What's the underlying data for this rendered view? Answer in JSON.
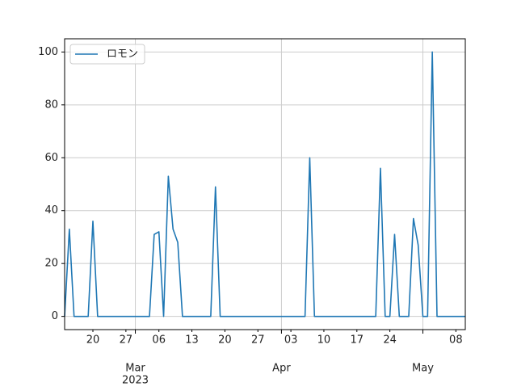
{
  "chart_data": {
    "type": "line",
    "x": [
      "2023-02-14",
      "2023-02-15",
      "2023-02-16",
      "2023-02-17",
      "2023-02-18",
      "2023-02-19",
      "2023-02-20",
      "2023-02-21",
      "2023-02-22",
      "2023-02-23",
      "2023-02-24",
      "2023-02-25",
      "2023-02-26",
      "2023-02-27",
      "2023-02-28",
      "2023-03-01",
      "2023-03-02",
      "2023-03-03",
      "2023-03-04",
      "2023-03-05",
      "2023-03-06",
      "2023-03-07",
      "2023-03-08",
      "2023-03-09",
      "2023-03-10",
      "2023-03-11",
      "2023-03-12",
      "2023-03-13",
      "2023-03-14",
      "2023-03-15",
      "2023-03-16",
      "2023-03-17",
      "2023-03-18",
      "2023-03-19",
      "2023-03-20",
      "2023-03-21",
      "2023-03-22",
      "2023-03-23",
      "2023-03-24",
      "2023-03-25",
      "2023-03-26",
      "2023-03-27",
      "2023-03-28",
      "2023-03-29",
      "2023-03-30",
      "2023-03-31",
      "2023-04-01",
      "2023-04-02",
      "2023-04-03",
      "2023-04-04",
      "2023-04-05",
      "2023-04-06",
      "2023-04-07",
      "2023-04-08",
      "2023-04-09",
      "2023-04-10",
      "2023-04-11",
      "2023-04-12",
      "2023-04-13",
      "2023-04-14",
      "2023-04-15",
      "2023-04-16",
      "2023-04-17",
      "2023-04-18",
      "2023-04-19",
      "2023-04-20",
      "2023-04-21",
      "2023-04-22",
      "2023-04-23",
      "2023-04-24",
      "2023-04-25",
      "2023-04-26",
      "2023-04-27",
      "2023-04-28",
      "2023-04-29",
      "2023-04-30",
      "2023-05-01",
      "2023-05-02",
      "2023-05-03",
      "2023-05-04",
      "2023-05-05",
      "2023-05-06",
      "2023-05-07",
      "2023-05-08",
      "2023-05-09",
      "2023-05-10"
    ],
    "series": [
      {
        "name": "ロモン",
        "color": "#1f77b4",
        "values": [
          0,
          33,
          0,
          0,
          0,
          0,
          36,
          0,
          0,
          0,
          0,
          0,
          0,
          0,
          0,
          0,
          0,
          0,
          0,
          31,
          32,
          0,
          53,
          33,
          28,
          0,
          0,
          0,
          0,
          0,
          0,
          0,
          49,
          0,
          0,
          0,
          0,
          0,
          0,
          0,
          0,
          0,
          0,
          0,
          0,
          0,
          0,
          0,
          0,
          0,
          0,
          0,
          60,
          0,
          0,
          0,
          0,
          0,
          0,
          0,
          0,
          0,
          0,
          0,
          0,
          0,
          0,
          56,
          0,
          0,
          31,
          0,
          0,
          0,
          37,
          27,
          0,
          0,
          100,
          0,
          0,
          0,
          0,
          0,
          0,
          0
        ]
      }
    ],
    "xlim": [
      "2023-02-14",
      "2023-05-10"
    ],
    "xticks_minor": [
      {
        "value": "2023-02-20",
        "label": "20"
      },
      {
        "value": "2023-02-27",
        "label": "27"
      },
      {
        "value": "2023-03-06",
        "label": "06"
      },
      {
        "value": "2023-03-13",
        "label": "13"
      },
      {
        "value": "2023-03-20",
        "label": "20"
      },
      {
        "value": "2023-03-27",
        "label": "27"
      },
      {
        "value": "2023-04-03",
        "label": "03"
      },
      {
        "value": "2023-04-10",
        "label": "10"
      },
      {
        "value": "2023-04-17",
        "label": "17"
      },
      {
        "value": "2023-04-24",
        "label": "24"
      },
      {
        "value": "2023-05-08",
        "label": "08"
      }
    ],
    "xticks_major": [
      {
        "value": "2023-03-01",
        "label": "Mar",
        "sublabel": "2023"
      },
      {
        "value": "2023-04-01",
        "label": "Apr"
      },
      {
        "value": "2023-05-01",
        "label": "May"
      }
    ],
    "ylim": [
      -5,
      105
    ],
    "yticks": [
      0,
      20,
      40,
      60,
      80,
      100
    ],
    "grid": true,
    "legend": "upper left"
  }
}
